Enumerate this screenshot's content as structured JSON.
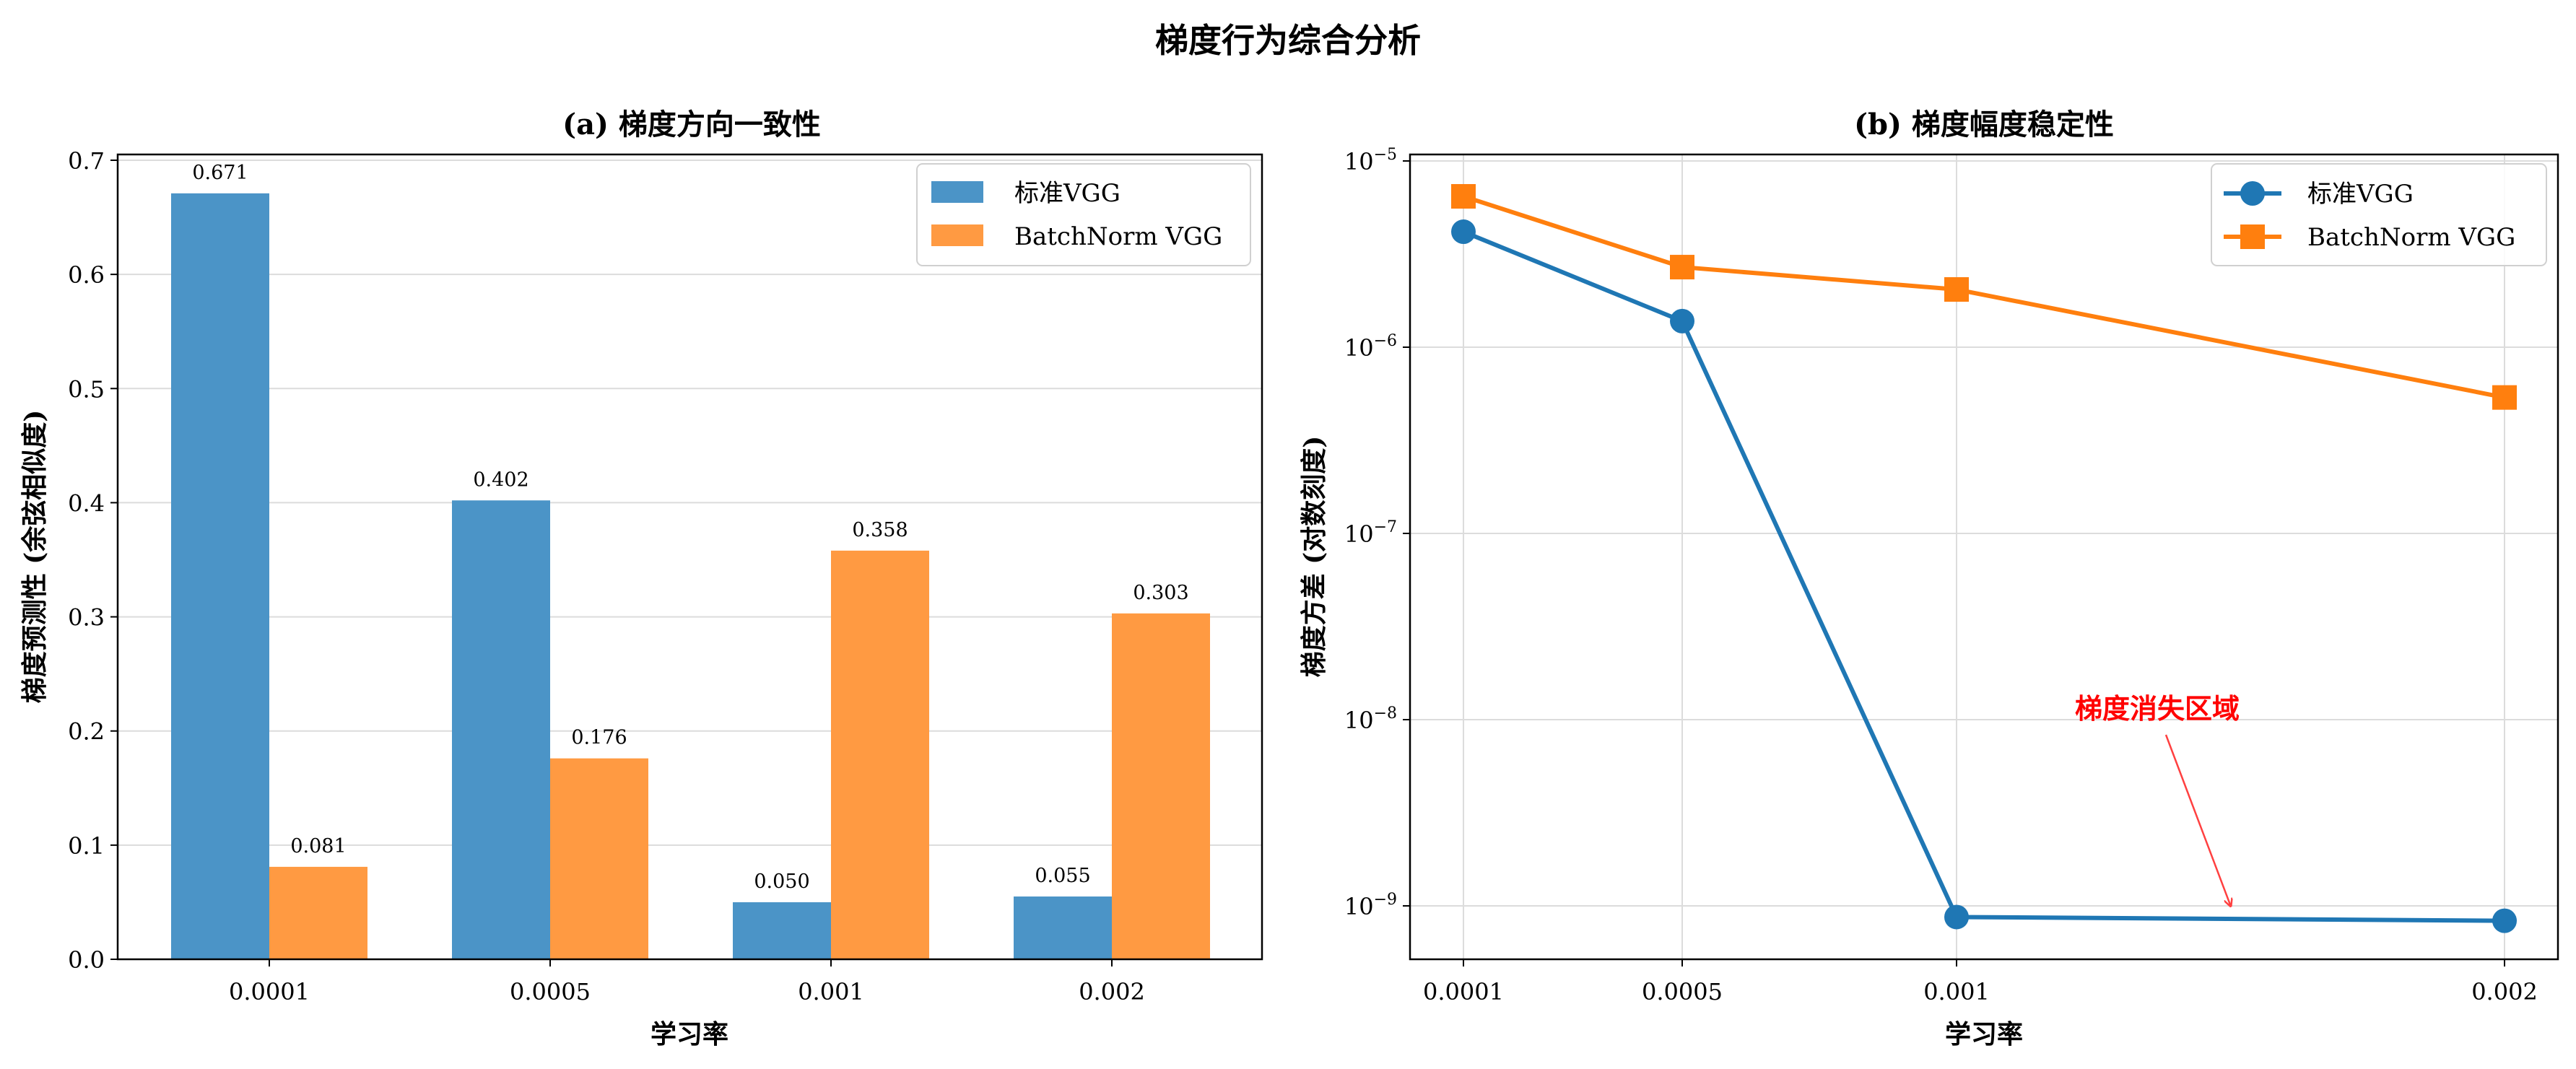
{
  "figure_title": "梯度行为综合分析",
  "chart_data": [
    {
      "type": "bar",
      "title": "(a) 梯度方向一致性",
      "xlabel": "学习率",
      "ylabel": "梯度预测性 (余弦相似度)",
      "categories": [
        "0.0001",
        "0.0005",
        "0.001",
        "0.002"
      ],
      "ylim": [
        0,
        0.7
      ],
      "yticks": [
        0.0,
        0.1,
        0.2,
        0.3,
        0.4,
        0.5,
        0.6,
        0.7
      ],
      "ytick_labels": [
        "0.0",
        "0.1",
        "0.2",
        "0.3",
        "0.4",
        "0.5",
        "0.6",
        "0.7"
      ],
      "grid": "y",
      "legend_position": "top-right",
      "series": [
        {
          "name": "标准VGG",
          "color": "#4b94c7",
          "values": [
            0.671,
            0.402,
            0.05,
            0.055
          ],
          "labels": [
            "0.671",
            "0.402",
            "0.050",
            "0.055"
          ]
        },
        {
          "name": "BatchNorm VGG",
          "color": "#ff9a42",
          "values": [
            0.081,
            0.176,
            0.358,
            0.303
          ],
          "labels": [
            "0.081",
            "0.176",
            "0.358",
            "0.303"
          ]
        }
      ]
    },
    {
      "type": "line",
      "title": "(b) 梯度幅度稳定性",
      "xlabel": "学习率",
      "ylabel": "梯度方差 (对数刻度)",
      "x": [
        0.0001,
        0.0005,
        0.001,
        0.002
      ],
      "xtick_labels": [
        "0.0001",
        "0.0005",
        "0.001",
        "0.002"
      ],
      "yscale": "log",
      "ylim_exp": [
        -9.08,
        -4.96
      ],
      "ytick_exps": [
        -5,
        -6,
        -7,
        -8,
        -9
      ],
      "ytick_labels": [
        {
          "base": "10",
          "exp": "−5"
        },
        {
          "base": "10",
          "exp": "−6"
        },
        {
          "base": "10",
          "exp": "−7"
        },
        {
          "base": "10",
          "exp": "−8"
        },
        {
          "base": "10",
          "exp": "−9"
        }
      ],
      "grid": "both",
      "legend_position": "top-right",
      "series": [
        {
          "name": "标准VGG",
          "color": "#1f77b4",
          "marker": "circle",
          "log10_values": [
            -5.38,
            -5.86,
            -9.06,
            -9.08
          ]
        },
        {
          "name": "BatchNorm VGG",
          "color": "#ff7f0e",
          "marker": "square",
          "log10_values": [
            -5.19,
            -5.57,
            -5.69,
            -6.27
          ]
        }
      ],
      "annotation": {
        "text": "梯度消失区域",
        "color": "#ff0000",
        "arrow_tip_x": 0.0015,
        "arrow_tip_exp": -9.03
      }
    }
  ]
}
